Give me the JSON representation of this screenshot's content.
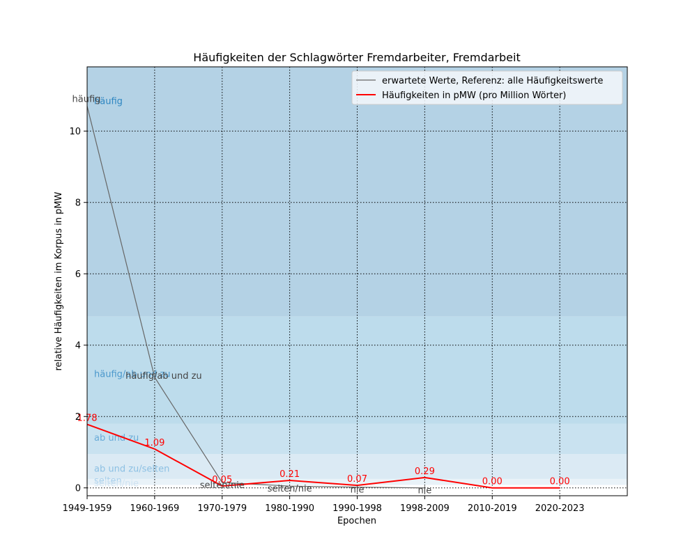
{
  "chart_data": {
    "type": "line",
    "title": "Häufigkeiten der Schlagwörter Fremdarbeiter, Fremdarbeit",
    "xlabel": "Epochen",
    "ylabel": "relative Häufigkeiten im Korpus in pMW",
    "categories": [
      "1949-1959",
      "1960-1969",
      "1970-1979",
      "1980-1990",
      "1990-1998",
      "1998-2009",
      "2010-2019",
      "2020-2023"
    ],
    "ylim": [
      -0.22,
      11.8
    ],
    "xlim": [
      0,
      8
    ],
    "yticks": [
      0,
      2,
      4,
      6,
      8,
      10
    ],
    "grid": true,
    "legend_position": "top-right",
    "bands": [
      {
        "label": "häufig",
        "from": 4.8,
        "to": 11.8,
        "color": "#b4d2e5",
        "label_y": 10.85,
        "label_color": "#2e86c1"
      },
      {
        "label": "häufig/ab und zu",
        "from": 1.8,
        "to": 4.8,
        "color": "#bddcec",
        "label_y": 3.2,
        "label_color": "#4b98cc"
      },
      {
        "label": "ab und zu",
        "from": 0.95,
        "to": 1.8,
        "color": "#c9e2f0",
        "label_y": 1.42,
        "label_color": "#69abd8"
      },
      {
        "label": "ab und zu/selten",
        "from": 0.25,
        "to": 0.95,
        "color": "#dbeaf4",
        "label_y": 0.55,
        "label_color": "#8cc0e3"
      },
      {
        "label": "selten",
        "from": 0.08,
        "to": 0.25,
        "color": "#e9f2f8",
        "label_y": 0.22,
        "label_color": "#a9d0ec"
      },
      {
        "label": "selten/nie",
        "from": -0.22,
        "to": 0.08,
        "color": "#ffffff",
        "label_y": 0.14,
        "label_color": "#cfe3f2"
      }
    ],
    "series": [
      {
        "name": "erwartete Werte, Referenz: alle Häufigkeitswerte",
        "color": "#666666",
        "values": [
          10.7,
          3.1,
          0.15,
          0.05,
          0.02,
          0.0,
          null,
          null
        ],
        "point_labels": [
          "häufig",
          "häufig/ab und zu",
          "selten/nie",
          "selten/nie",
          "nie",
          "nie",
          "",
          ""
        ]
      },
      {
        "name": "Häufigkeiten in pMW (pro Million Wörter)",
        "color": "#ff0000",
        "values": [
          1.78,
          1.09,
          0.05,
          0.21,
          0.07,
          0.29,
          0.0,
          0.0
        ],
        "point_labels": [
          "1.78",
          "1.09",
          "0.05",
          "0.21",
          "0.07",
          "0.29",
          "0.00",
          "0.00"
        ]
      }
    ]
  }
}
